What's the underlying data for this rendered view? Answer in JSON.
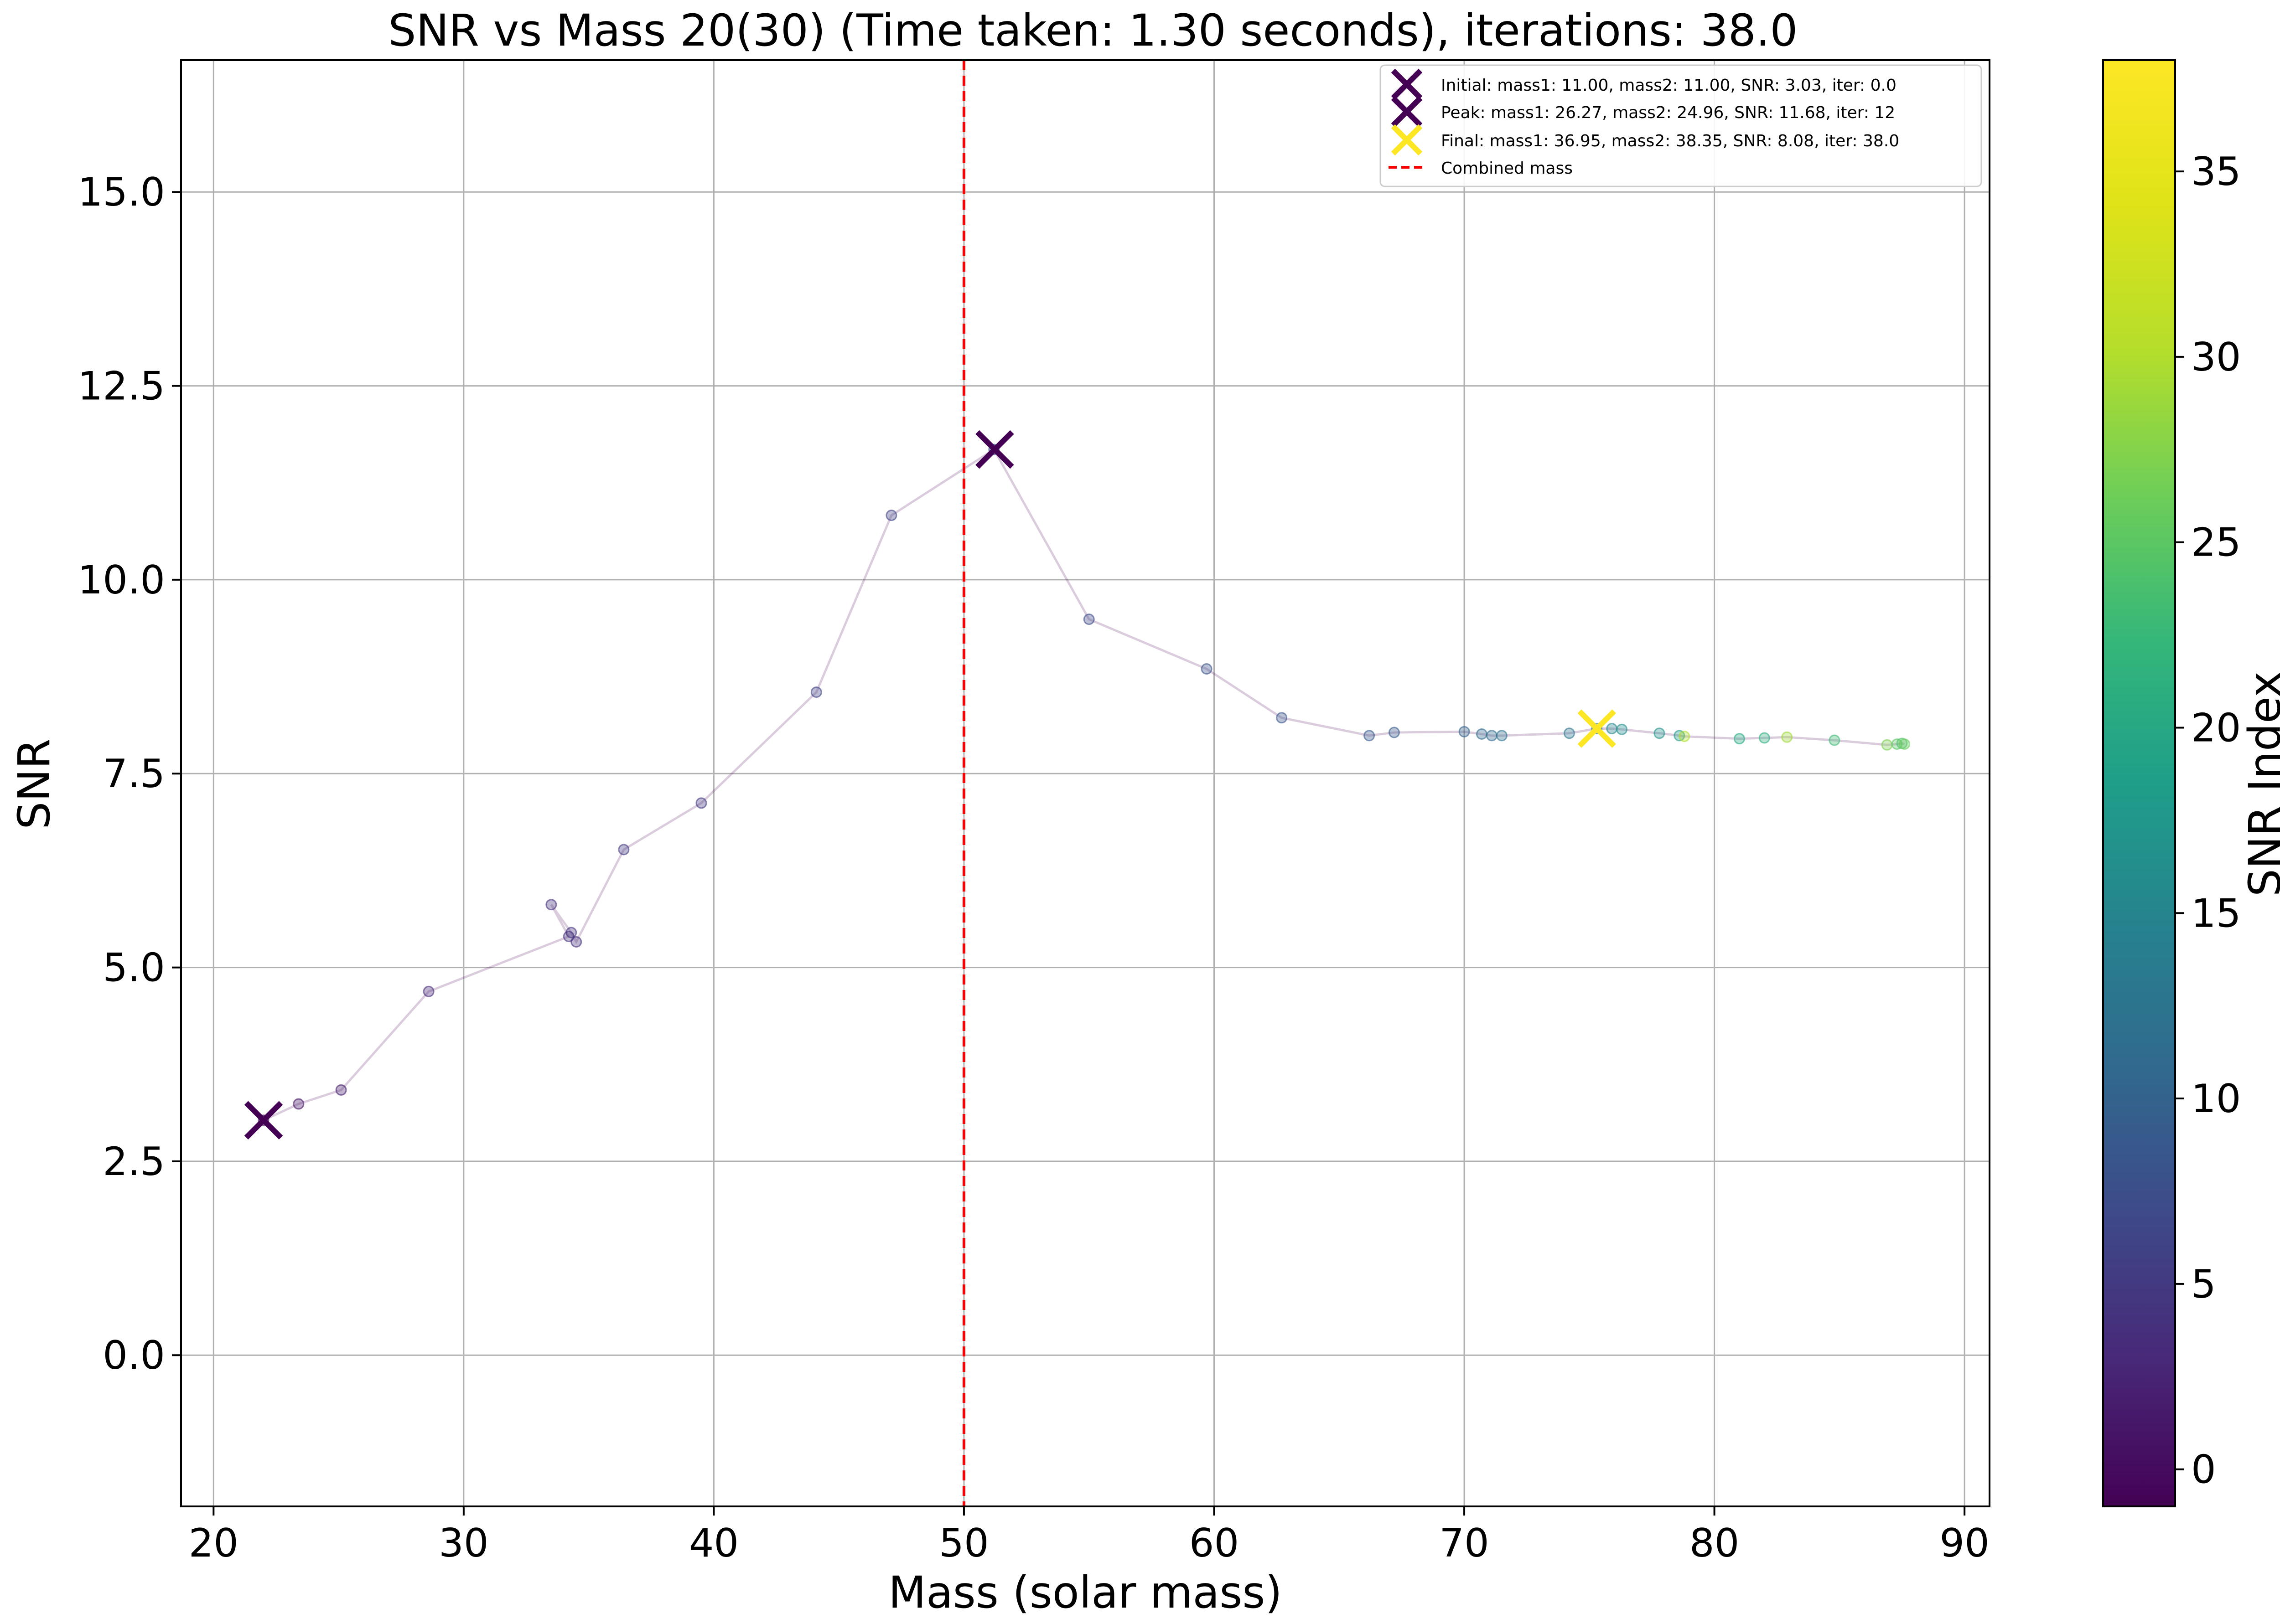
{
  "chart_data": {
    "type": "scatter",
    "title": "SNR vs Mass 20(30) (Time taken: 1.30 seconds), iterations: 38.0",
    "xlabel": "Mass (solar mass)",
    "ylabel": "SNR",
    "xlim": [
      18.7,
      91
    ],
    "ylim": [
      -1.95,
      16.7
    ],
    "x_ticks": [
      "20",
      "30",
      "40",
      "50",
      "60",
      "70",
      "80",
      "90"
    ],
    "y_ticks": [
      "0.0",
      "2.5",
      "5.0",
      "7.5",
      "10.0",
      "12.5",
      "15.0"
    ],
    "grid": true,
    "colorbar": {
      "label": "SNR Index",
      "range": [
        -1,
        38
      ],
      "ticks": [
        "0",
        "5",
        "10",
        "15",
        "20",
        "25",
        "30",
        "35"
      ],
      "colormap": "viridis"
    },
    "series": [
      {
        "points": [
          {
            "x": 22.0,
            "y": 3.03,
            "c": 0
          },
          {
            "x": 23.4,
            "y": 3.24,
            "c": 1
          },
          {
            "x": 25.1,
            "y": 3.42,
            "c": 2
          },
          {
            "x": 28.6,
            "y": 4.69,
            "c": 3
          },
          {
            "x": 34.2,
            "y": 5.4,
            "c": 4
          },
          {
            "x": 33.5,
            "y": 5.81,
            "c": 4
          },
          {
            "x": 34.3,
            "y": 5.45,
            "c": 4
          },
          {
            "x": 34.5,
            "y": 5.33,
            "c": 4
          },
          {
            "x": 36.4,
            "y": 6.52,
            "c": 5
          },
          {
            "x": 39.5,
            "y": 7.12,
            "c": 5
          },
          {
            "x": 44.1,
            "y": 8.55,
            "c": 6
          },
          {
            "x": 47.1,
            "y": 10.83,
            "c": 6
          },
          {
            "x": 51.2,
            "y": 11.68,
            "c": 7
          },
          {
            "x": 55.0,
            "y": 9.49,
            "c": 7
          },
          {
            "x": 59.7,
            "y": 8.85,
            "c": 8
          },
          {
            "x": 62.7,
            "y": 8.22,
            "c": 8
          },
          {
            "x": 66.2,
            "y": 7.99,
            "c": 9
          },
          {
            "x": 67.2,
            "y": 8.03,
            "c": 9
          },
          {
            "x": 70.0,
            "y": 8.04,
            "c": 10
          },
          {
            "x": 70.7,
            "y": 8.01,
            "c": 11
          },
          {
            "x": 71.1,
            "y": 7.99,
            "c": 11
          },
          {
            "x": 71.5,
            "y": 7.99,
            "c": 12
          },
          {
            "x": 74.2,
            "y": 8.02,
            "c": 13
          },
          {
            "x": 75.3,
            "y": 8.08,
            "c": 14
          },
          {
            "x": 75.9,
            "y": 8.08,
            "c": 15
          },
          {
            "x": 76.3,
            "y": 8.07,
            "c": 16
          },
          {
            "x": 77.8,
            "y": 8.02,
            "c": 17
          },
          {
            "x": 78.6,
            "y": 7.99,
            "c": 18
          },
          {
            "x": 78.8,
            "y": 7.98,
            "c": 30
          },
          {
            "x": 81.0,
            "y": 7.95,
            "c": 20
          },
          {
            "x": 82.0,
            "y": 7.96,
            "c": 21
          },
          {
            "x": 82.9,
            "y": 7.97,
            "c": 29
          },
          {
            "x": 84.8,
            "y": 7.93,
            "c": 23
          },
          {
            "x": 86.9,
            "y": 7.87,
            "c": 27
          },
          {
            "x": 87.3,
            "y": 7.88,
            "c": 25
          },
          {
            "x": 87.5,
            "y": 7.89,
            "c": 24
          },
          {
            "x": 87.6,
            "y": 7.88,
            "c": 26
          }
        ]
      }
    ],
    "markers": [
      {
        "label": "Initial: mass1: 11.00, mass2: 11.00, SNR: 3.03, iter: 0.0",
        "x": 22.0,
        "y": 3.03,
        "color": "#440154"
      },
      {
        "label": "Peak: mass1: 26.27, mass2: 24.96, SNR: 11.68, iter: 12",
        "x": 51.23,
        "y": 11.68,
        "color": "#440154"
      },
      {
        "label": "Final: mass1: 36.95, mass2: 38.35, SNR: 8.08, iter: 38.0",
        "x": 75.3,
        "y": 8.08,
        "color": "#fde725"
      }
    ],
    "vline": {
      "label": "Combined mass",
      "x": 50,
      "color": "#ff0000"
    },
    "legend_position": "upper-right"
  }
}
